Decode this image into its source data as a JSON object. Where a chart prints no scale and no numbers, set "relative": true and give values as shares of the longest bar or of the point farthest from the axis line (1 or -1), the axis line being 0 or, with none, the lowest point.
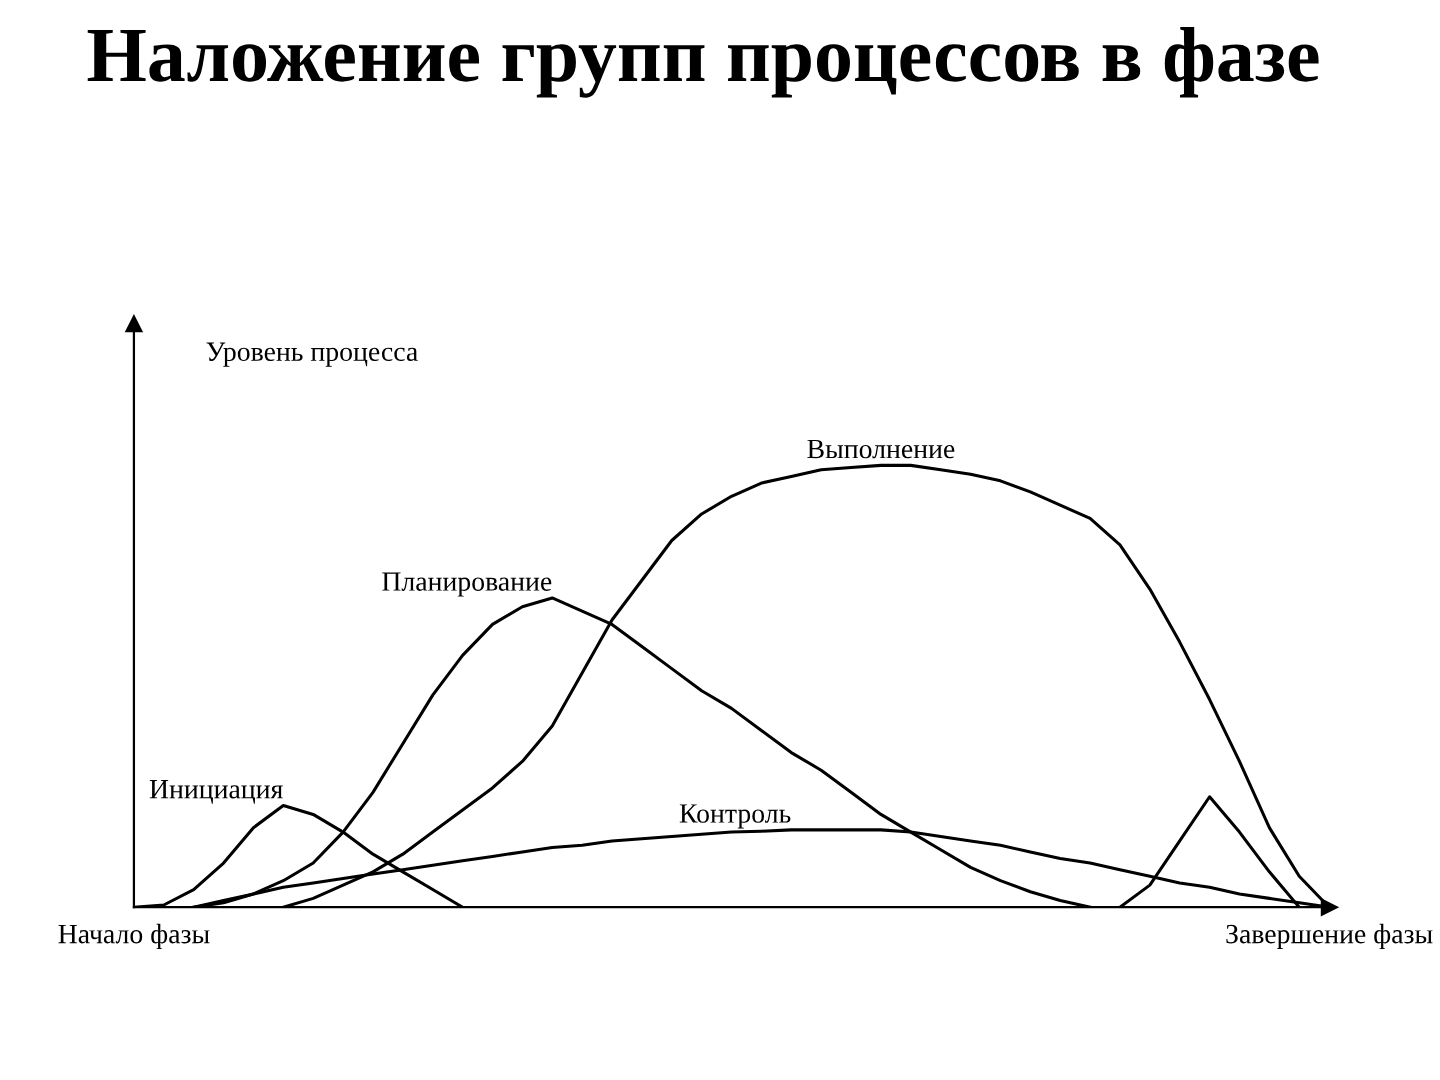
{
  "chart_data": {
    "type": "line",
    "title": "Наложение групп процессов в фазе",
    "ylabel": "Уровень процесса",
    "relative": true,
    "categories": [
      "Начало фазы",
      null,
      null,
      null,
      null,
      null,
      null,
      null,
      null,
      null,
      null,
      null,
      null,
      null,
      null,
      null,
      null,
      null,
      null,
      null,
      null,
      null,
      null,
      null,
      null,
      null,
      null,
      null,
      null,
      null,
      null,
      null,
      null,
      null,
      null,
      null,
      null,
      null,
      null,
      null,
      "Завершение фазы"
    ],
    "grid": false,
    "legend": false,
    "marker": "none",
    "line_style": "solid",
    "series": [
      {
        "name": "Инициация",
        "color": "#000000",
        "values": [
          0,
          0.005,
          0.04,
          0.1,
          0.18,
          0.23,
          0.21,
          0.17,
          0.12,
          0.08,
          0.04,
          0,
          null,
          null,
          null,
          null,
          null,
          null,
          null,
          null,
          null,
          null,
          null,
          null,
          null,
          null,
          null,
          null,
          null,
          null,
          null,
          null,
          null,
          null,
          null,
          null,
          null,
          null,
          null,
          null,
          null
        ]
      },
      {
        "name": "Планирование",
        "color": "#000000",
        "values": [
          null,
          null,
          0,
          0.01,
          0.03,
          0.06,
          0.1,
          0.17,
          0.26,
          0.37,
          0.48,
          0.57,
          0.64,
          0.68,
          0.7,
          0.67,
          0.64,
          0.59,
          0.54,
          0.49,
          0.45,
          0.4,
          0.35,
          0.31,
          0.26,
          0.21,
          0.17,
          0.13,
          0.09,
          0.06,
          0.035,
          0.015,
          0,
          null,
          null,
          null,
          null,
          null,
          null,
          null,
          null
        ]
      },
      {
        "name": "Выполнение",
        "color": "#000000",
        "values": [
          null,
          null,
          null,
          null,
          null,
          0,
          0.02,
          0.05,
          0.08,
          0.12,
          0.17,
          0.22,
          0.27,
          0.33,
          0.41,
          0.53,
          0.65,
          0.74,
          0.83,
          0.89,
          0.93,
          0.96,
          0.975,
          0.99,
          0.995,
          1,
          1,
          0.99,
          0.98,
          0.965,
          0.94,
          0.91,
          0.88,
          0.82,
          0.72,
          0.6,
          0.47,
          0.33,
          0.18,
          0.07,
          0
        ]
      },
      {
        "name": "Контроль",
        "color": "#000000",
        "values": [
          null,
          null,
          0,
          0.015,
          0.03,
          0.045,
          0.055,
          0.065,
          0.075,
          0.085,
          0.095,
          0.105,
          0.115,
          0.125,
          0.135,
          0.14,
          0.15,
          0.155,
          0.16,
          0.165,
          0.17,
          0.172,
          0.175,
          0.175,
          0.175,
          0.175,
          0.17,
          0.16,
          0.15,
          0.14,
          0.125,
          0.11,
          0.1,
          0.085,
          0.07,
          0.055,
          0.045,
          0.03,
          0.02,
          0.01,
          0
        ]
      },
      {
        "color": "#000000",
        "values": [
          null,
          null,
          null,
          null,
          null,
          null,
          null,
          null,
          null,
          null,
          null,
          null,
          null,
          null,
          null,
          null,
          null,
          null,
          null,
          null,
          null,
          null,
          null,
          null,
          null,
          null,
          null,
          null,
          null,
          null,
          null,
          null,
          null,
          0,
          0.05,
          0.15,
          0.25,
          0.17,
          0.08,
          0,
          null
        ]
      }
    ]
  }
}
